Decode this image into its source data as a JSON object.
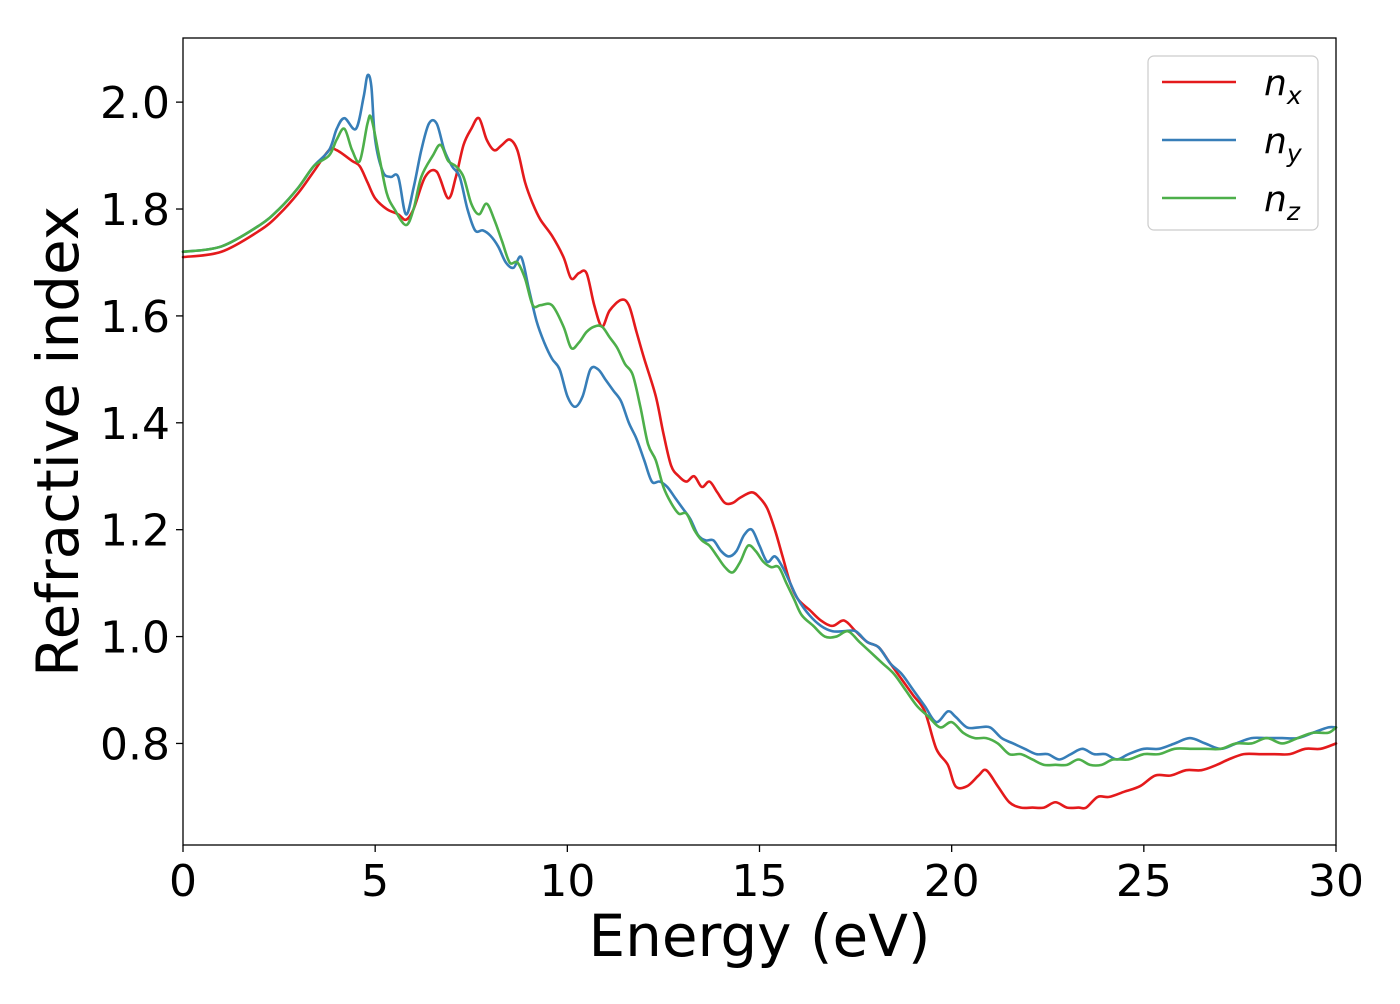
{
  "chart_data": {
    "type": "line",
    "title": "",
    "xlabel": "Energy (eV)",
    "ylabel": "Refractive index",
    "xlim": [
      0,
      30
    ],
    "ylim": [
      0.61,
      2.12
    ],
    "xticks": [
      "0",
      "5",
      "10",
      "15",
      "20",
      "25",
      "30"
    ],
    "yticks": [
      "0.8",
      "1.0",
      "1.2",
      "1.4",
      "1.6",
      "1.8",
      "2.0"
    ],
    "grid": false,
    "legend_position": "top-right",
    "series": [
      {
        "name": "n",
        "subscript": "x",
        "color": "#e41a1c",
        "x": [
          0,
          1,
          2,
          2.5,
          3,
          3.4,
          3.8,
          4.0,
          4.4,
          4.6,
          4.8,
          5.0,
          5.3,
          5.6,
          5.8,
          6.0,
          6.3,
          6.6,
          6.9,
          7.1,
          7.3,
          7.5,
          7.7,
          7.9,
          8.1,
          8.3,
          8.5,
          8.7,
          8.9,
          9.1,
          9.3,
          9.6,
          9.9,
          10.1,
          10.3,
          10.5,
          10.7,
          10.9,
          11.1,
          11.4,
          11.6,
          11.8,
          12.0,
          12.3,
          12.5,
          12.7,
          12.9,
          13.1,
          13.3,
          13.5,
          13.7,
          13.9,
          14.1,
          14.3,
          14.5,
          14.8,
          15.0,
          15.2,
          15.4,
          15.6,
          15.8,
          16.0,
          16.3,
          16.6,
          16.9,
          17.2,
          17.5,
          17.8,
          18.1,
          18.4,
          18.7,
          19.0,
          19.3,
          19.6,
          19.9,
          20.1,
          20.4,
          20.7,
          20.9,
          21.2,
          21.5,
          21.8,
          22.1,
          22.4,
          22.7,
          23.0,
          23.3,
          23.5,
          23.8,
          24.1,
          24.5,
          24.9,
          25.3,
          25.7,
          26.1,
          26.5,
          26.9,
          27.2,
          27.6,
          28.0,
          28.4,
          28.8,
          29.2,
          29.6,
          30.0
        ],
        "y": [
          1.71,
          1.72,
          1.76,
          1.79,
          1.83,
          1.87,
          1.91,
          1.91,
          1.89,
          1.88,
          1.85,
          1.82,
          1.8,
          1.79,
          1.78,
          1.8,
          1.86,
          1.87,
          1.82,
          1.86,
          1.92,
          1.95,
          1.97,
          1.93,
          1.91,
          1.92,
          1.93,
          1.91,
          1.85,
          1.81,
          1.78,
          1.75,
          1.71,
          1.67,
          1.68,
          1.68,
          1.62,
          1.58,
          1.61,
          1.63,
          1.62,
          1.57,
          1.52,
          1.45,
          1.38,
          1.32,
          1.3,
          1.29,
          1.3,
          1.28,
          1.29,
          1.27,
          1.25,
          1.25,
          1.26,
          1.27,
          1.26,
          1.24,
          1.2,
          1.15,
          1.1,
          1.07,
          1.05,
          1.03,
          1.02,
          1.03,
          1.01,
          0.99,
          0.98,
          0.95,
          0.92,
          0.89,
          0.86,
          0.79,
          0.76,
          0.72,
          0.72,
          0.74,
          0.75,
          0.72,
          0.69,
          0.68,
          0.68,
          0.68,
          0.69,
          0.68,
          0.68,
          0.68,
          0.7,
          0.7,
          0.71,
          0.72,
          0.74,
          0.74,
          0.75,
          0.75,
          0.76,
          0.77,
          0.78,
          0.78,
          0.78,
          0.78,
          0.79,
          0.79,
          0.8
        ]
      },
      {
        "name": "n",
        "subscript": "y",
        "color": "#377eb8",
        "x": [
          0,
          1,
          2,
          2.5,
          3,
          3.4,
          3.8,
          4.0,
          4.2,
          4.5,
          4.7,
          4.8,
          4.9,
          5.0,
          5.2,
          5.4,
          5.6,
          5.8,
          6.0,
          6.2,
          6.4,
          6.6,
          6.8,
          7.0,
          7.2,
          7.4,
          7.6,
          7.8,
          8.0,
          8.2,
          8.4,
          8.6,
          8.8,
          9.0,
          9.2,
          9.4,
          9.6,
          9.8,
          10.0,
          10.2,
          10.4,
          10.6,
          10.8,
          11.0,
          11.2,
          11.4,
          11.6,
          11.8,
          12.0,
          12.2,
          12.4,
          12.6,
          12.8,
          13.0,
          13.2,
          13.4,
          13.6,
          13.8,
          14.0,
          14.2,
          14.4,
          14.6,
          14.8,
          15.0,
          15.2,
          15.4,
          15.6,
          15.8,
          16.0,
          16.3,
          16.6,
          16.9,
          17.2,
          17.5,
          17.8,
          18.1,
          18.4,
          18.7,
          19.0,
          19.3,
          19.6,
          19.9,
          20.1,
          20.4,
          20.7,
          21.0,
          21.3,
          21.6,
          21.9,
          22.2,
          22.5,
          22.8,
          23.1,
          23.4,
          23.7,
          24.0,
          24.3,
          24.6,
          25.0,
          25.4,
          25.8,
          26.2,
          26.6,
          27.0,
          27.4,
          27.8,
          28.2,
          28.6,
          29.0,
          29.4,
          29.8,
          30.0
        ],
        "y": [
          1.72,
          1.73,
          1.77,
          1.8,
          1.84,
          1.88,
          1.91,
          1.95,
          1.97,
          1.95,
          2.01,
          2.05,
          2.03,
          1.93,
          1.87,
          1.86,
          1.86,
          1.79,
          1.84,
          1.91,
          1.96,
          1.96,
          1.91,
          1.88,
          1.86,
          1.8,
          1.76,
          1.76,
          1.75,
          1.73,
          1.7,
          1.69,
          1.71,
          1.65,
          1.59,
          1.55,
          1.52,
          1.5,
          1.45,
          1.43,
          1.45,
          1.5,
          1.5,
          1.48,
          1.46,
          1.44,
          1.4,
          1.37,
          1.33,
          1.29,
          1.29,
          1.28,
          1.26,
          1.24,
          1.22,
          1.19,
          1.18,
          1.18,
          1.16,
          1.15,
          1.16,
          1.19,
          1.2,
          1.17,
          1.14,
          1.15,
          1.13,
          1.1,
          1.07,
          1.04,
          1.02,
          1.01,
          1.01,
          1.01,
          0.99,
          0.98,
          0.95,
          0.93,
          0.9,
          0.87,
          0.84,
          0.86,
          0.85,
          0.83,
          0.83,
          0.83,
          0.81,
          0.8,
          0.79,
          0.78,
          0.78,
          0.77,
          0.78,
          0.79,
          0.78,
          0.78,
          0.77,
          0.78,
          0.79,
          0.79,
          0.8,
          0.81,
          0.8,
          0.79,
          0.8,
          0.81,
          0.81,
          0.81,
          0.81,
          0.82,
          0.83,
          0.83
        ]
      },
      {
        "name": "n",
        "subscript": "z",
        "color": "#4daf4a",
        "x": [
          0,
          1,
          2,
          2.5,
          3,
          3.4,
          3.8,
          4.0,
          4.2,
          4.4,
          4.6,
          4.8,
          4.9,
          5.1,
          5.3,
          5.5,
          5.8,
          6.0,
          6.2,
          6.5,
          6.7,
          6.9,
          7.1,
          7.3,
          7.5,
          7.7,
          7.9,
          8.1,
          8.3,
          8.5,
          8.7,
          8.9,
          9.1,
          9.3,
          9.6,
          9.9,
          10.1,
          10.3,
          10.5,
          10.7,
          10.9,
          11.1,
          11.3,
          11.5,
          11.7,
          11.9,
          12.1,
          12.3,
          12.5,
          12.7,
          12.9,
          13.1,
          13.3,
          13.5,
          13.7,
          13.9,
          14.1,
          14.3,
          14.5,
          14.7,
          14.9,
          15.1,
          15.3,
          15.5,
          15.7,
          15.9,
          16.1,
          16.4,
          16.7,
          17.0,
          17.3,
          17.6,
          17.9,
          18.2,
          18.5,
          18.8,
          19.1,
          19.4,
          19.7,
          20.0,
          20.3,
          20.6,
          20.9,
          21.2,
          21.5,
          21.8,
          22.1,
          22.4,
          22.7,
          23.0,
          23.3,
          23.6,
          23.9,
          24.2,
          24.6,
          25.0,
          25.4,
          25.8,
          26.2,
          26.6,
          27.0,
          27.4,
          27.8,
          28.2,
          28.6,
          29.0,
          29.4,
          29.8,
          30.0
        ],
        "y": [
          1.72,
          1.73,
          1.77,
          1.8,
          1.84,
          1.88,
          1.9,
          1.93,
          1.95,
          1.91,
          1.89,
          1.96,
          1.97,
          1.9,
          1.83,
          1.8,
          1.77,
          1.8,
          1.86,
          1.9,
          1.92,
          1.89,
          1.88,
          1.86,
          1.81,
          1.79,
          1.81,
          1.78,
          1.74,
          1.7,
          1.7,
          1.67,
          1.62,
          1.62,
          1.62,
          1.58,
          1.54,
          1.55,
          1.57,
          1.58,
          1.58,
          1.56,
          1.54,
          1.51,
          1.49,
          1.43,
          1.36,
          1.33,
          1.28,
          1.25,
          1.23,
          1.23,
          1.2,
          1.18,
          1.17,
          1.15,
          1.13,
          1.12,
          1.14,
          1.17,
          1.16,
          1.14,
          1.13,
          1.13,
          1.1,
          1.07,
          1.04,
          1.02,
          1.0,
          1.0,
          1.01,
          0.99,
          0.97,
          0.95,
          0.93,
          0.9,
          0.87,
          0.85,
          0.83,
          0.84,
          0.82,
          0.81,
          0.81,
          0.8,
          0.78,
          0.78,
          0.77,
          0.76,
          0.76,
          0.76,
          0.77,
          0.76,
          0.76,
          0.77,
          0.77,
          0.78,
          0.78,
          0.79,
          0.79,
          0.79,
          0.79,
          0.8,
          0.8,
          0.81,
          0.8,
          0.81,
          0.82,
          0.82,
          0.83
        ]
      }
    ]
  }
}
